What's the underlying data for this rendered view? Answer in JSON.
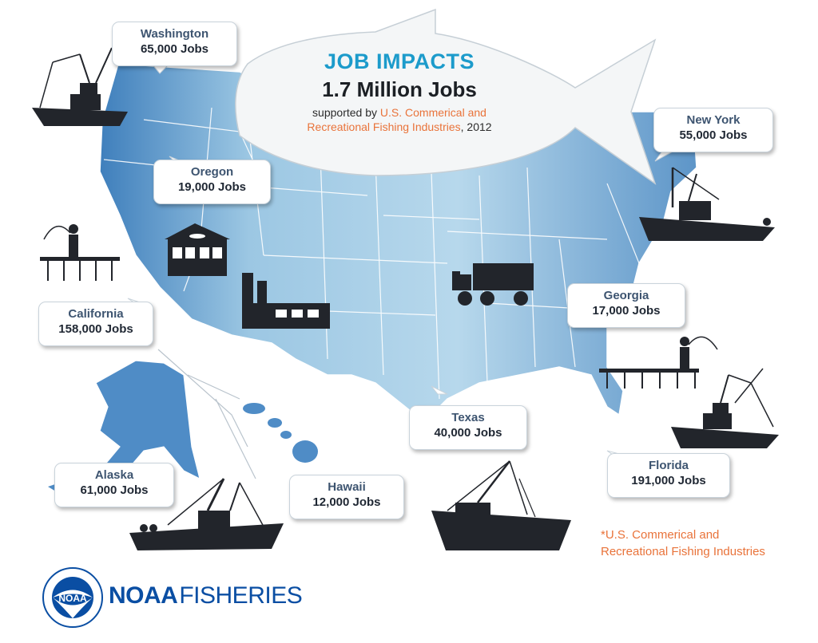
{
  "header": {
    "title": "JOB IMPACTS",
    "total": "1.7 Million Jobs",
    "subtitle_prefix": "supported by ",
    "subtitle_highlight_1": "U.S. Commerical and",
    "subtitle_highlight_2": "Recreational Fishing Industries",
    "subtitle_suffix": ", 2012"
  },
  "states": [
    {
      "name": "Washington",
      "jobs": "65,000 Jobs"
    },
    {
      "name": "Oregon",
      "jobs": "19,000 Jobs"
    },
    {
      "name": "California",
      "jobs": "158,000 Jobs"
    },
    {
      "name": "New York",
      "jobs": "55,000 Jobs"
    },
    {
      "name": "Georgia",
      "jobs": "17,000 Jobs"
    },
    {
      "name": "Texas",
      "jobs": "40,000 Jobs"
    },
    {
      "name": "Florida",
      "jobs": "191,000 Jobs"
    },
    {
      "name": "Alaska",
      "jobs": "61,000 Jobs"
    },
    {
      "name": "Hawaii",
      "jobs": "12,000 Jobs"
    }
  ],
  "footnote": {
    "line1": "*U.S. Commerical and",
    "line2": "Recreational Fishing Industries"
  },
  "logo": {
    "agency": "NOAA",
    "division": "FISHERIES",
    "seal_text": "NOAA"
  },
  "colors": {
    "map_fill": "#a9cfe6",
    "map_dark": "#3c78b4",
    "title_blue": "#1c9bcb",
    "orange": "#e9733a",
    "silhouette": "#22252b",
    "noaa_blue": "#0a4ea3"
  },
  "icons": [
    "fishing-boat-icon",
    "fish-market-icon",
    "factory-icon",
    "truck-icon",
    "fisherman-on-pier-icon",
    "noaa-seal-icon"
  ]
}
